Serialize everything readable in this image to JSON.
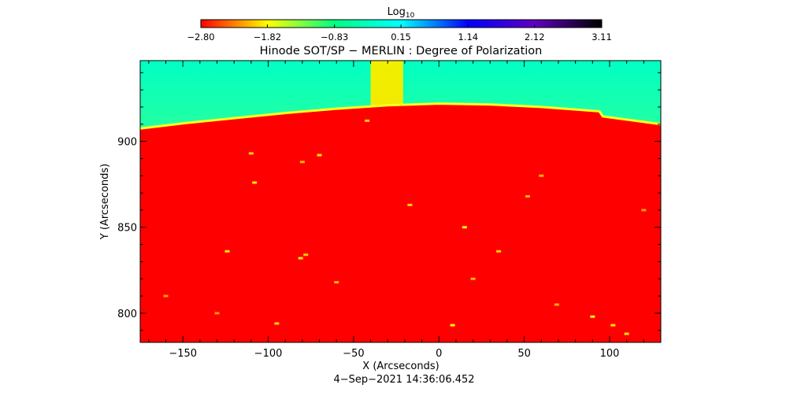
{
  "chart_data": {
    "type": "heatmap",
    "title": "Hinode SOT/SP − MERLIN : Degree of Polarization",
    "xlabel": "X (Arcseconds)",
    "ylabel": "Y (Arcseconds)",
    "xlim": [
      -175,
      130
    ],
    "ylim": [
      783,
      947
    ],
    "x_ticks": [
      {
        "value": -150,
        "label": "−150"
      },
      {
        "value": -100,
        "label": "−100"
      },
      {
        "value": -50,
        "label": "−50"
      },
      {
        "value": 0,
        "label": "0"
      },
      {
        "value": 50,
        "label": "50"
      },
      {
        "value": 100,
        "label": "100"
      }
    ],
    "y_ticks": [
      {
        "value": 800,
        "label": "800"
      },
      {
        "value": 850,
        "label": "850"
      },
      {
        "value": 900,
        "label": "900"
      }
    ],
    "timestamp": "4−Sep−2021 14:36:06.452",
    "colorbar": {
      "title_base": "Log",
      "title_sub": "10",
      "range": [
        -2.8,
        3.11
      ],
      "ticks": [
        {
          "value": -2.8,
          "label": "−2.80"
        },
        {
          "value": -1.82,
          "label": "−1.82"
        },
        {
          "value": -0.83,
          "label": "−0.83"
        },
        {
          "value": 0.15,
          "label": "0.15"
        },
        {
          "value": 1.14,
          "label": "1.14"
        },
        {
          "value": 2.12,
          "label": "2.12"
        },
        {
          "value": 3.11,
          "label": "3.11"
        }
      ],
      "colormap": [
        "#ff0000",
        "#ffff00",
        "#00ff80",
        "#00ffff",
        "#0000ff",
        "#6000c0",
        "#000000"
      ]
    },
    "limb_profile": {
      "x": [
        -175,
        -150,
        -120,
        -90,
        -60,
        -30,
        0,
        30,
        60,
        94,
        96,
        130
      ],
      "y": [
        907.5,
        910.5,
        913.5,
        916.5,
        919,
        921,
        922,
        921.5,
        920,
        917.5,
        914.5,
        910
      ]
    },
    "disk_value": -2.8,
    "offlimb_value_near": -1.4,
    "offlimb_value_far": -0.3,
    "brighter_strip": {
      "x": [
        -40,
        -21
      ],
      "value": -1.7
    },
    "features": [
      {
        "x": -42,
        "y": 912,
        "v": -2.0
      },
      {
        "x": -110,
        "y": 893,
        "v": -2.0
      },
      {
        "x": -70,
        "y": 892,
        "v": -1.9
      },
      {
        "x": -80,
        "y": 888,
        "v": -2.1
      },
      {
        "x": -108,
        "y": 876,
        "v": -1.9
      },
      {
        "x": -17,
        "y": 863,
        "v": -2.0
      },
      {
        "x": 52,
        "y": 868,
        "v": -2.1
      },
      {
        "x": 15,
        "y": 850,
        "v": -1.8
      },
      {
        "x": -124,
        "y": 836,
        "v": -1.9
      },
      {
        "x": -78,
        "y": 834,
        "v": -2.0
      },
      {
        "x": -81,
        "y": 832,
        "v": -1.9
      },
      {
        "x": 35,
        "y": 836,
        "v": -2.0
      },
      {
        "x": 20,
        "y": 820,
        "v": -2.1
      },
      {
        "x": -60,
        "y": 818,
        "v": -2.1
      },
      {
        "x": 8,
        "y": 793,
        "v": -1.8
      },
      {
        "x": -95,
        "y": 794,
        "v": -2.0
      },
      {
        "x": 90,
        "y": 798,
        "v": -1.8
      },
      {
        "x": 102,
        "y": 793,
        "v": -1.9
      },
      {
        "x": 110,
        "y": 788,
        "v": -1.9
      },
      {
        "x": 69,
        "y": 805,
        "v": -2.1
      },
      {
        "x": -130,
        "y": 800,
        "v": -2.2
      },
      {
        "x": 60,
        "y": 880,
        "v": -2.1
      },
      {
        "x": 120,
        "y": 860,
        "v": -2.2
      },
      {
        "x": -160,
        "y": 810,
        "v": -2.2
      }
    ]
  }
}
